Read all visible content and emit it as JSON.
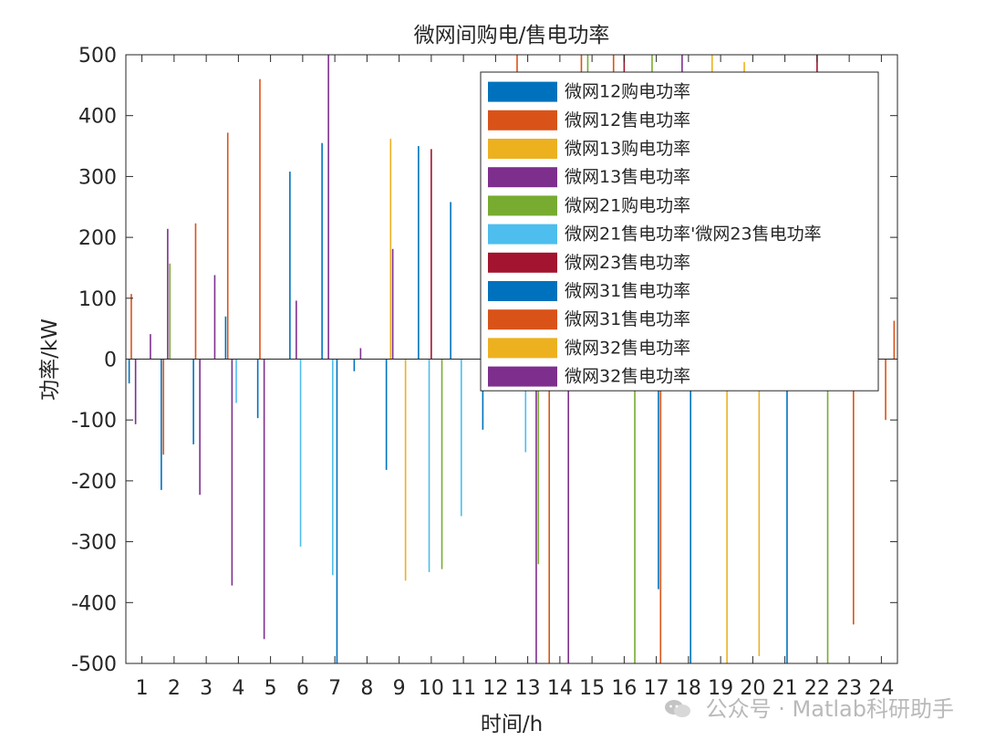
{
  "chart_data": {
    "type": "bar",
    "title": "微网间购电/售电功率",
    "xlabel": "时间/h",
    "ylabel": "功率/kW",
    "ylim": [
      -500,
      500
    ],
    "yticks": [
      -500,
      -400,
      -300,
      -200,
      -100,
      0,
      100,
      200,
      300,
      400,
      500
    ],
    "categories": [
      "1",
      "2",
      "3",
      "4",
      "5",
      "6",
      "7",
      "8",
      "9",
      "10",
      "11",
      "12",
      "13",
      "14",
      "15",
      "16",
      "17",
      "18",
      "19",
      "20",
      "21",
      "22",
      "23",
      "24"
    ],
    "legend_position": "top-right",
    "series": [
      {
        "name": "微网12购电功率",
        "color": "#0072BD",
        "values": [
          -40,
          -215,
          -140,
          70,
          -97,
          308,
          355,
          -20,
          -182,
          350,
          258,
          -116,
          0,
          0,
          0,
          0,
          0,
          0,
          0,
          0,
          0,
          0,
          0,
          0
        ]
      },
      {
        "name": "微网12售电功率",
        "color": "#D95319",
        "values": [
          107,
          -157,
          223,
          372,
          460,
          0,
          0,
          0,
          0,
          0,
          0,
          0,
          500,
          -500,
          500,
          500,
          0,
          0,
          0,
          0,
          0,
          0,
          0,
          0
        ]
      },
      {
        "name": "微网13购电功率",
        "color": "#EDB120",
        "values": [
          0,
          0,
          0,
          0,
          0,
          0,
          0,
          0,
          362,
          0,
          0,
          0,
          0,
          0,
          0,
          0,
          0,
          0,
          500,
          488,
          0,
          0,
          0,
          0
        ]
      },
      {
        "name": "微网13售电功率",
        "color": "#7E2F8E",
        "values": [
          -107,
          214,
          -223,
          -372,
          -460,
          96,
          500,
          18,
          181,
          0,
          0,
          0,
          0,
          0,
          0,
          0,
          0,
          500,
          0,
          0,
          0,
          0,
          0,
          0
        ]
      },
      {
        "name": "微网21购电功率",
        "color": "#77AC30",
        "values": [
          0,
          157,
          0,
          0,
          0,
          0,
          0,
          0,
          0,
          0,
          0,
          0,
          0,
          0,
          500,
          0,
          500,
          0,
          0,
          0,
          0,
          0,
          0,
          100
        ]
      },
      {
        "name": "微网21售电功率'微网23售电功率",
        "color": "#4DBEEE",
        "values": [
          0,
          0,
          0,
          -72,
          0,
          -308,
          -355,
          0,
          0,
          -350,
          -258,
          0,
          -153,
          0,
          0,
          0,
          0,
          0,
          0,
          0,
          0,
          0,
          0,
          0
        ]
      },
      {
        "name": "微网23售电功率",
        "color": "#A2142F",
        "values": [
          0,
          0,
          0,
          0,
          0,
          0,
          0,
          0,
          0,
          345,
          0,
          0,
          0,
          0,
          0,
          500,
          0,
          0,
          0,
          0,
          0,
          500,
          0,
          0
        ]
      },
      {
        "name": "微网31售电功率",
        "color": "#0072BD",
        "values": [
          0,
          0,
          0,
          0,
          0,
          0,
          -500,
          0,
          0,
          0,
          0,
          0,
          0,
          0,
          0,
          0,
          -378,
          -500,
          0,
          0,
          -500,
          0,
          0,
          0
        ]
      },
      {
        "name": "微网31售电功率",
        "color": "#D95319",
        "values": [
          0,
          0,
          0,
          0,
          0,
          0,
          0,
          0,
          0,
          0,
          0,
          0,
          0,
          0,
          0,
          0,
          -500,
          0,
          0,
          0,
          0,
          0,
          -436,
          -100
        ]
      },
      {
        "name": "微网32售电功率",
        "color": "#EDB120",
        "values": [
          0,
          0,
          0,
          0,
          0,
          0,
          0,
          0,
          -364,
          0,
          0,
          0,
          0,
          0,
          0,
          0,
          0,
          0,
          -500,
          -488,
          0,
          0,
          0,
          0
        ]
      },
      {
        "name": "微网32售电功率",
        "color": "#7E2F8E",
        "values": [
          41,
          0,
          138,
          0,
          0,
          0,
          0,
          0,
          0,
          0,
          0,
          0,
          -500,
          -500,
          0,
          0,
          0,
          0,
          0,
          0,
          0,
          0,
          0,
          0
        ]
      },
      {
        "name": "",
        "color": "#77AC30",
        "values": [
          0,
          0,
          0,
          0,
          0,
          0,
          0,
          0,
          0,
          -345,
          0,
          0,
          -337,
          0,
          0,
          -500,
          0,
          0,
          0,
          0,
          0,
          -500,
          0,
          0
        ]
      },
      {
        "name": "",
        "color": "#D95319",
        "values": [
          0,
          0,
          0,
          0,
          0,
          0,
          0,
          0,
          0,
          0,
          0,
          0,
          0,
          0,
          0,
          0,
          0,
          0,
          0,
          0,
          0,
          0,
          0,
          63
        ]
      }
    ]
  },
  "watermark": {
    "text": "公众号 · Matlab科研助手"
  }
}
